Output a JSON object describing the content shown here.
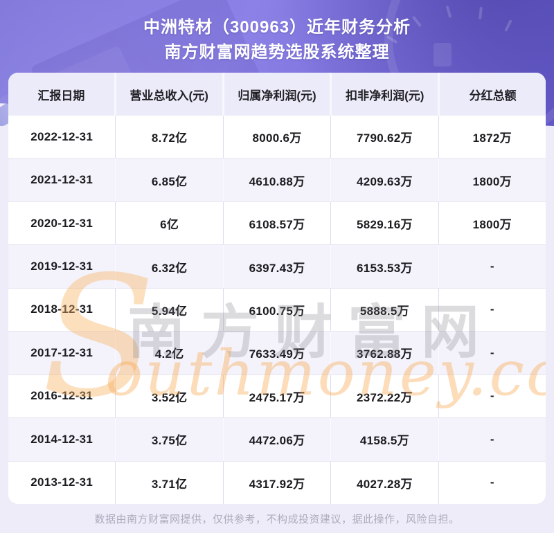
{
  "banner": {
    "title_line1": "中洲特材（300963）近年财务分析",
    "title_line2": "南方财富网趋势选股系统整理"
  },
  "chart_data": {
    "type": "table",
    "title": "中洲特材（300963）近年财务分析",
    "subtitle": "南方财富网趋势选股系统整理",
    "columns": [
      "汇报日期",
      "营业总收入(元)",
      "归属净利润(元)",
      "扣非净利润(元)",
      "分红总额"
    ],
    "rows": [
      [
        "2022-12-31",
        "8.72亿",
        "8000.6万",
        "7790.62万",
        "1872万"
      ],
      [
        "2021-12-31",
        "6.85亿",
        "4610.88万",
        "4209.63万",
        "1800万"
      ],
      [
        "2020-12-31",
        "6亿",
        "6108.57万",
        "5829.16万",
        "1800万"
      ],
      [
        "2019-12-31",
        "6.32亿",
        "6397.43万",
        "6153.53万",
        "-"
      ],
      [
        "2018-12-31",
        "5.94亿",
        "6100.75万",
        "5888.5万",
        "-"
      ],
      [
        "2017-12-31",
        "4.2亿",
        "7633.49万",
        "3762.88万",
        "-"
      ],
      [
        "2016-12-31",
        "3.52亿",
        "2475.17万",
        "2372.22万",
        "-"
      ],
      [
        "2014-12-31",
        "3.75亿",
        "4472.06万",
        "4158.5万",
        "-"
      ],
      [
        "2013-12-31",
        "3.71亿",
        "4317.92万",
        "4027.28万",
        "-"
      ]
    ]
  },
  "watermark": {
    "s_flourish": "S",
    "cn_text": "南方财富网",
    "en_text": "outhmoney.com"
  },
  "footer": {
    "disclaimer": "数据由南方财富网提供，仅供参考，不构成投资建议，据此操作，风险自担。"
  },
  "colors": {
    "banner_purple_light": "#8b81e6",
    "banner_purple_dark": "#675dcb",
    "page_background": "#edecf8",
    "panel_background": "#ffffff",
    "header_row_background": "#ecebf9",
    "alt_row_background": "#f4f3fb",
    "cell_text": "#1b1b1f",
    "footer_text": "#aeabbe",
    "watermark_orange": "#f7a850"
  }
}
